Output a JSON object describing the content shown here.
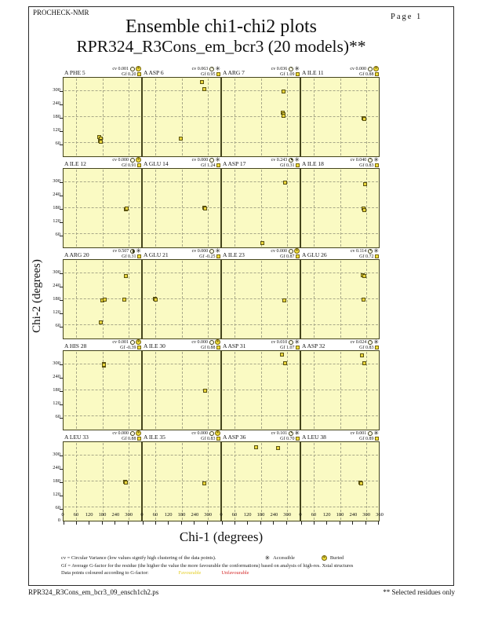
{
  "header": {
    "app": "PROCHECK-NMR",
    "page": "Page 1",
    "title": "Ensemble chi1-chi2 plots",
    "subtitle": "RPR324_R3Cons_em_bcr3 (20 models)**"
  },
  "axes": {
    "x_label": "Chi-1 (degrees)",
    "y_label": "Chi-2 (degrees)",
    "x_ticks": [
      0,
      60,
      120,
      180,
      240,
      300
    ],
    "x_end_tick": 360,
    "y_ticks": [
      300,
      240,
      180,
      120,
      60
    ],
    "y_origin_label": "0"
  },
  "legend": {
    "cv_text": "cv = Circular Variance (low values signify high clustering of the data points).",
    "accessible_label": "Accessible",
    "buried_label": "Buried",
    "gf_text": "Gf = Average G-factor for the residue (the higher the value the more favourable the conformations) based on analysis of high-res. Xstal structures",
    "colour_text": "Data points coloured according to G-factor:",
    "favourable_label": "Favourable",
    "unfavourable_label": "Unfavourable"
  },
  "footer": {
    "left": "RPR324_R3Cons_em_bcr3_09_ensch1ch2.ps",
    "right": "** Selected residues only"
  },
  "colors": {
    "plot_bg": "#fafac3",
    "point_fill": "#e9d53b",
    "point_border": "#5c5410",
    "grid_dash": "#a8a888",
    "pie_fill": "#3a3a1a",
    "favourable": "#e3cd20",
    "unfavourable": "#d42a2a"
  },
  "chart_data": {
    "type": "scatter",
    "x_range": [
      0,
      360
    ],
    "y_range": [
      0,
      360
    ],
    "xlabel": "Chi-1 (degrees)",
    "ylabel": "Chi-2 (degrees)",
    "grid_lines_deg": [
      60,
      180,
      300
    ],
    "tick_step": 60,
    "grid_cols": 4,
    "cv_prefix": "cv",
    "gf_prefix": "Gf",
    "plots": [
      {
        "residue": "A PHE 5",
        "cv": "0.001",
        "gf": "0.20",
        "access": "buried",
        "points": [
          [
            166,
            88
          ],
          [
            173,
            82
          ],
          [
            168,
            72
          ],
          [
            174,
            65
          ]
        ]
      },
      {
        "residue": "A ASP 6",
        "cv": "0.063",
        "gf": "0.95",
        "access": "accessible",
        "points": [
          [
            274,
            340
          ],
          [
            286,
            307
          ],
          [
            178,
            82
          ]
        ]
      },
      {
        "residue": "A ARG 7",
        "cv": "0.036",
        "gf": "1.09",
        "access": "accessible",
        "points": [
          [
            287,
            298
          ],
          [
            282,
            200
          ],
          [
            286,
            192
          ],
          [
            284,
            184
          ]
        ]
      },
      {
        "residue": "A ILE 11",
        "cv": "0.000",
        "gf": "0.88",
        "access": "buried",
        "points": [
          [
            288,
            176
          ],
          [
            291,
            172
          ]
        ]
      },
      {
        "residue": "A ILE 12",
        "cv": "0.000",
        "gf": "0.91",
        "access": "buried",
        "points": [
          [
            289,
            176
          ],
          [
            292,
            180
          ]
        ]
      },
      {
        "residue": "A GLU 14",
        "cv": "0.000",
        "gf": "1.24",
        "access": "accessible",
        "points": [
          [
            286,
            181
          ],
          [
            289,
            177
          ]
        ]
      },
      {
        "residue": "A ASP 17",
        "cv": "0.243",
        "gf": "0.31",
        "access": "accessible",
        "points": [
          [
            292,
            296
          ],
          [
            187,
            20
          ]
        ]
      },
      {
        "residue": "A ILE 18",
        "cv": "0.040",
        "gf": "0.83",
        "access": "accessible",
        "points": [
          [
            297,
            290
          ],
          [
            288,
            180
          ],
          [
            291,
            172
          ]
        ]
      },
      {
        "residue": "A ARG 20",
        "cv": "0.507",
        "gf": "0.31",
        "access": "accessible",
        "points": [
          [
            289,
            285
          ],
          [
            281,
            180
          ],
          [
            180,
            176
          ],
          [
            192,
            180
          ],
          [
            174,
            74
          ]
        ]
      },
      {
        "residue": "A GLU 21",
        "cv": "0.000",
        "gf": "-0.25",
        "access": "accessible",
        "points": [
          [
            57,
            181
          ],
          [
            60,
            178
          ]
        ]
      },
      {
        "residue": "A ILE 23",
        "cv": "0.000",
        "gf": "0.87",
        "access": "buried",
        "points": [
          [
            290,
            175
          ]
        ]
      },
      {
        "residue": "A GLU 26",
        "cv": "0.114",
        "gf": "0.72",
        "access": "accessible",
        "points": [
          [
            287,
            291
          ],
          [
            291,
            286
          ],
          [
            289,
            180
          ]
        ]
      },
      {
        "residue": "A HIS 28",
        "cv": "0.001",
        "gf": "-0.39",
        "access": "buried",
        "points": [
          [
            186,
            302
          ],
          [
            189,
            294
          ],
          [
            187,
            298
          ]
        ]
      },
      {
        "residue": "A ILE 30",
        "cv": "0.000",
        "gf": "0.88",
        "access": "buried",
        "points": [
          [
            288,
            177
          ]
        ]
      },
      {
        "residue": "A ASP 31",
        "cv": "0.010",
        "gf": "1.07",
        "access": "accessible",
        "points": [
          [
            279,
            345
          ],
          [
            293,
            306
          ]
        ]
      },
      {
        "residue": "A ASP 32",
        "cv": "0.024",
        "gf": "0.83",
        "access": "accessible",
        "points": [
          [
            283,
            340
          ],
          [
            294,
            304
          ]
        ]
      },
      {
        "residue": "A LEU 33",
        "cv": "0.000",
        "gf": "0.88",
        "access": "buried",
        "points": [
          [
            285,
            180
          ],
          [
            288,
            176
          ]
        ]
      },
      {
        "residue": "A ILE 35",
        "cv": "0.000",
        "gf": "0.83",
        "access": "buried",
        "points": [
          [
            286,
            170
          ]
        ]
      },
      {
        "residue": "A ASP 36",
        "cv": "0.101",
        "gf": "0.70",
        "access": "accessible",
        "points": [
          [
            160,
            338
          ],
          [
            260,
            332
          ]
        ]
      },
      {
        "residue": "A LEU 38",
        "cv": "0.001",
        "gf": "0.89",
        "access": "accessible",
        "points": [
          [
            274,
            175
          ],
          [
            277,
            170
          ]
        ]
      }
    ]
  }
}
